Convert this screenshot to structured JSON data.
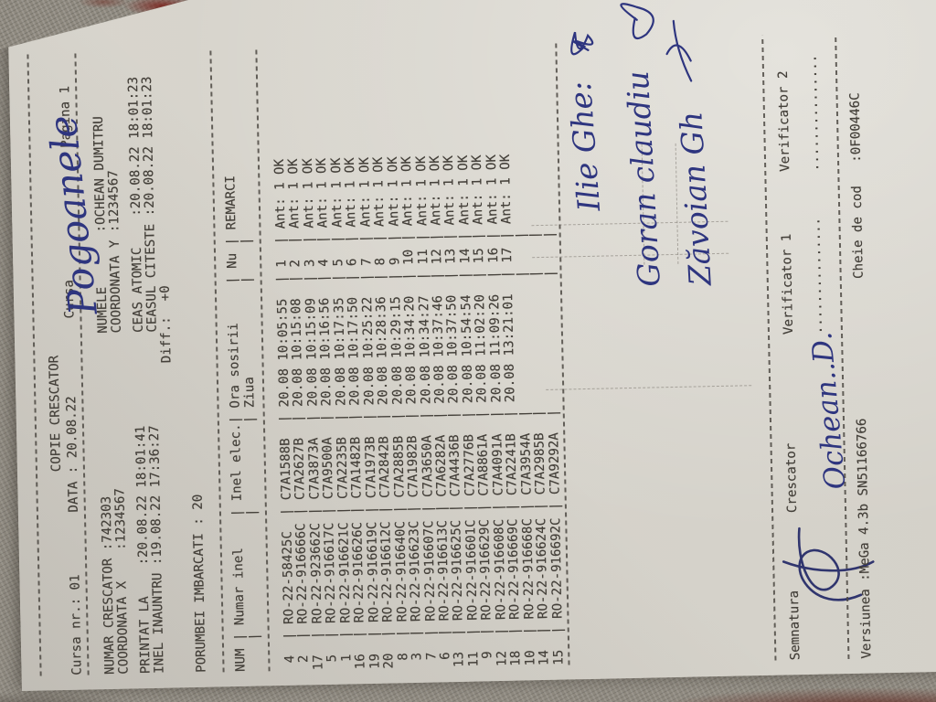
{
  "document": {
    "title": "COPIE CRESCATOR",
    "lines": {
      "top": "Cursa nr.: 01        DATA : 20.08.22          Cursa                 Pagina 1",
      "info1": "NUMAR CRESCATOR :742303                     NUMELE       :OCHEAN DUMITRU",
      "info2": "COORDONATA X    :1234567                    COORDONATA Y :1234567",
      "time1": "PRINTAT LA    :20.08.22 18:01:41            CEAS ATOMIC    :20.08.22 18:01:23",
      "time2": "INEL INAUNTRU :19.08.22 17:36:27            CEASUL CITESTE :20.08.22 18:01:23",
      "diff": "                                        Diff.:  +0",
      "embarked": "PORUMBEI IMBARCATI : 20",
      "foot1": "Semnatura          Crescator              Verificator 1        Verificator 2",
      "foot2": "                                          ...............      ...............",
      "version": "Versiunea :MeGa 4.3b SN51166766                  Cheie de cod   :0F00446C"
    },
    "table": {
      "head1": "NUM | Numar inel    | Inel elec.| Ora sosirii     | Nu | REMARCI",
      "head2": "    |               |           | Ziua            |    |",
      "columns": [
        "NUM",
        "Numar inel",
        "Inel elec.",
        "Ora sosirii / Ziua",
        "Nu",
        "REMARCI"
      ],
      "rows": [
        {
          "num": "4",
          "inel": "RO-22-58425C",
          "elec": "C7A1588B",
          "ora": "20.08 10:05:55",
          "nu": "1",
          "rem": "Ant: 1 OK"
        },
        {
          "num": "2",
          "inel": "RO-22-916666C",
          "elec": "C7A2627B",
          "ora": "20.08 10:15:08",
          "nu": "2",
          "rem": "Ant: 1 OK"
        },
        {
          "num": "17",
          "inel": "RO-22-923662C",
          "elec": "C7A3873A",
          "ora": "20.08 10:15:09",
          "nu": "3",
          "rem": "Ant: 1 OK"
        },
        {
          "num": "5",
          "inel": "RO-22-916617C",
          "elec": "C7A9500A",
          "ora": "20.08 10:16:56",
          "nu": "4",
          "rem": "Ant: 1 OK"
        },
        {
          "num": "1",
          "inel": "RO-22-916621C",
          "elec": "C7A2235B",
          "ora": "20.08 10:17:35",
          "nu": "5",
          "rem": "Ant: 1 OK"
        },
        {
          "num": "16",
          "inel": "RO-22-916626C",
          "elec": "C7A1482B",
          "ora": "20.08 10:17:50",
          "nu": "6",
          "rem": "Ant: 1 OK"
        },
        {
          "num": "19",
          "inel": "RO-22-916619C",
          "elec": "C7A1973B",
          "ora": "20.08 10:25:22",
          "nu": "7",
          "rem": "Ant: 1 OK"
        },
        {
          "num": "20",
          "inel": "RO-22-916612C",
          "elec": "C7A2842B",
          "ora": "20.08 10:28:36",
          "nu": "8",
          "rem": "Ant: 1 OK"
        },
        {
          "num": "8",
          "inel": "RO-22-916640C",
          "elec": "C7A2885B",
          "ora": "20.08 10:29:15",
          "nu": "9",
          "rem": "Ant: 1 OK"
        },
        {
          "num": "3",
          "inel": "RO-22-916623C",
          "elec": "C7A1982B",
          "ora": "20.08 10:34:20",
          "nu": "10",
          "rem": "Ant: 1 OK"
        },
        {
          "num": "7",
          "inel": "RO-22-916607C",
          "elec": "C7A3650A",
          "ora": "20.08 10:34:27",
          "nu": "11",
          "rem": "Ant: 1 OK"
        },
        {
          "num": "6",
          "inel": "RO-22-916613C",
          "elec": "C7A6282A",
          "ora": "20.08 10:37:46",
          "nu": "12",
          "rem": "Ant: 1 OK"
        },
        {
          "num": "13",
          "inel": "RO-22-916625C",
          "elec": "C7A4436B",
          "ora": "20.08 10:37:50",
          "nu": "13",
          "rem": "Ant: 1 OK"
        },
        {
          "num": "11",
          "inel": "RO-22-916601C",
          "elec": "C7A2776B",
          "ora": "20.08 10:54:54",
          "nu": "14",
          "rem": "Ant: 1 OK"
        },
        {
          "num": "9",
          "inel": "RO-22-916629C",
          "elec": "C7A8861A",
          "ora": "20.08 11:02:20",
          "nu": "15",
          "rem": "Ant: 1 OK"
        },
        {
          "num": "12",
          "inel": "RO-22-916608C",
          "elec": "C7A4091A",
          "ora": "20.08 11:09:26",
          "nu": "16",
          "rem": "Ant: 1 OK"
        },
        {
          "num": "18",
          "inel": "RO-22-916669C",
          "elec": "C7A2241B",
          "ora": "20.08 13:21:01",
          "nu": "17",
          "rem": "Ant: 1 OK"
        },
        {
          "num": "10",
          "inel": "RO-22-916668C",
          "elec": "C7A3954A",
          "ora": "",
          "nu": "",
          "rem": ""
        },
        {
          "num": "14",
          "inel": "RO-22-916624C",
          "elec": "C7A2985B",
          "ora": "",
          "nu": "",
          "rem": ""
        },
        {
          "num": "15",
          "inel": "RO-22-916692C",
          "elec": "C7A9292A",
          "ora": "",
          "nu": "",
          "rem": ""
        }
      ]
    },
    "handwriting": {
      "ink_color": "#2e357f",
      "race": "Pogoanele",
      "name1": "Ilie Ghe:",
      "name2": "Goran claudiu",
      "name3": "Zăvoian Gh",
      "crescator": "Ochean..D."
    }
  }
}
